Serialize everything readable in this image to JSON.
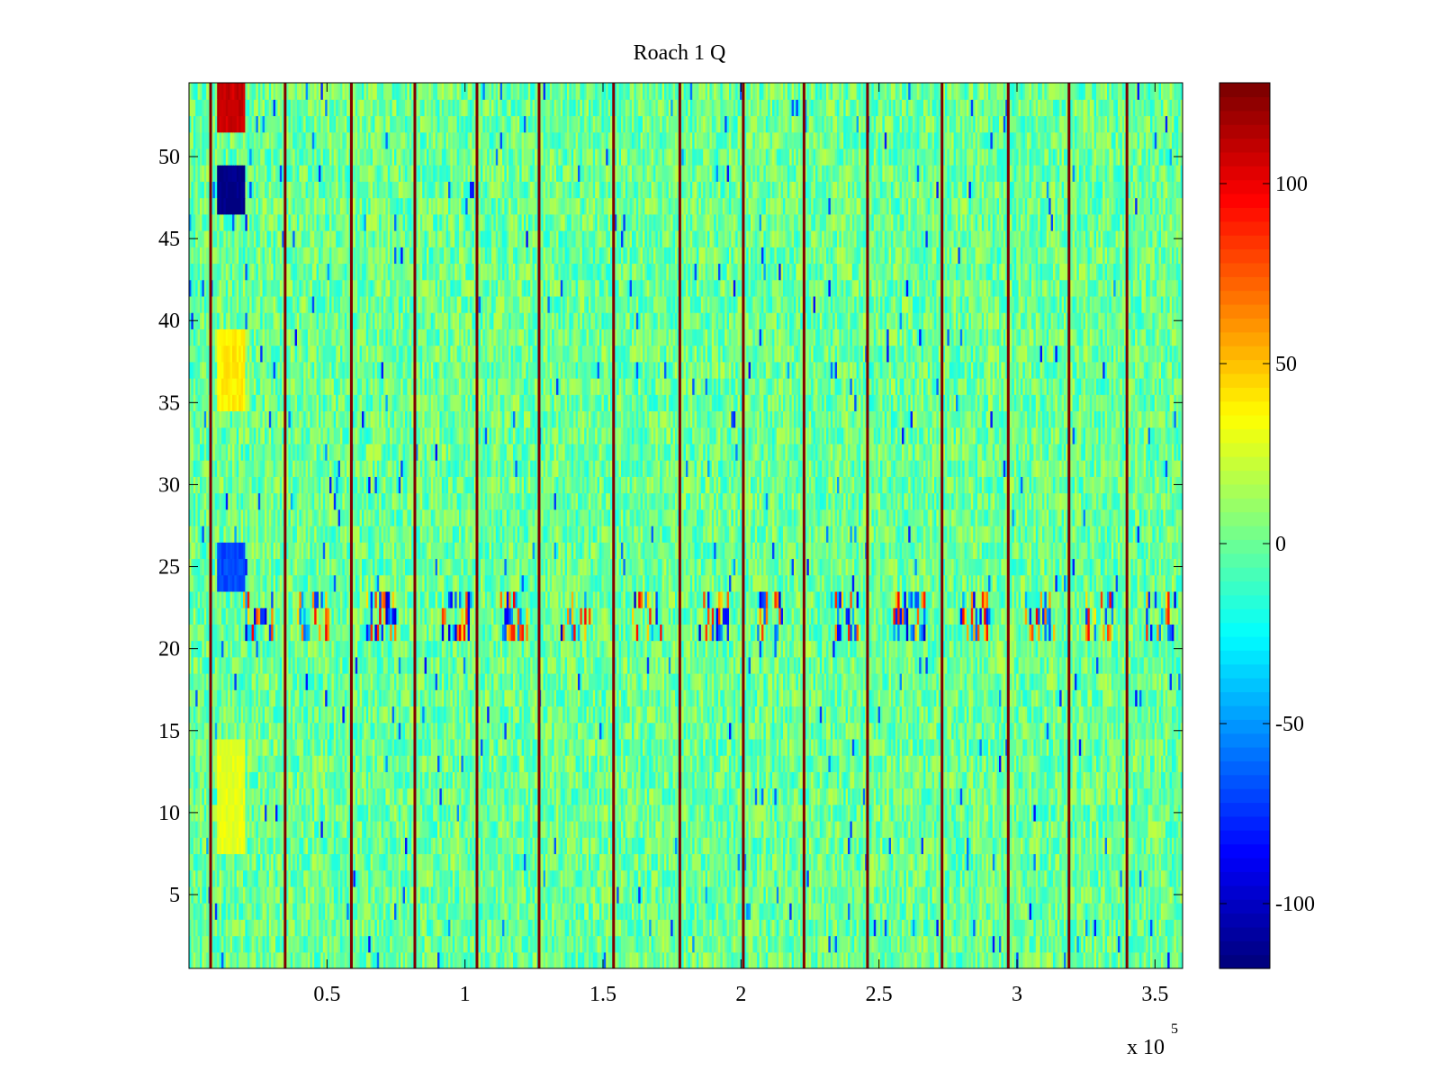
{
  "chart_data": {
    "type": "heatmap",
    "title": "Roach 1 Q",
    "xlabel": "",
    "ylabel": "",
    "x_multiplier_label": "x 10",
    "x_multiplier_exponent": "5",
    "xlim": [
      0,
      360000
    ],
    "ylim": [
      0.5,
      54.5
    ],
    "x_ticks": [
      50000,
      100000,
      150000,
      200000,
      250000,
      300000,
      350000
    ],
    "x_tick_labels": [
      "0.5",
      "1",
      "1.5",
      "2",
      "2.5",
      "3",
      "3.5"
    ],
    "y_ticks": [
      5,
      10,
      15,
      20,
      25,
      30,
      35,
      40,
      45,
      50
    ],
    "y_tick_labels": [
      "5",
      "10",
      "15",
      "20",
      "25",
      "30",
      "35",
      "40",
      "45",
      "50"
    ],
    "rows": 54,
    "value_baseline": 0,
    "colorbar": {
      "colormap": "jet",
      "clim": [
        -118,
        128
      ],
      "ticks": [
        -100,
        -50,
        0,
        50,
        100
      ],
      "tick_labels": [
        "-100",
        "-50",
        "0",
        "50",
        "100"
      ]
    },
    "vertical_stripes_x": [
      8000,
      35000,
      59000,
      82000,
      104500,
      127000,
      154000,
      178000,
      201000,
      223000,
      246000,
      273000,
      297000,
      319000,
      340000
    ],
    "stripe_value": 128,
    "noisy_band_rows": [
      21,
      22,
      23
    ],
    "noisy_band_burst_x": [
      25000,
      45000,
      70000,
      97000,
      118000,
      140000,
      166000,
      190000,
      210000,
      237000,
      261000,
      285000,
      308000,
      330000,
      352000
    ],
    "features": [
      {
        "x_range": [
          10000,
          20000
        ],
        "y_range": [
          52,
          54
        ],
        "value": 110
      },
      {
        "x_range": [
          10000,
          20000
        ],
        "y_range": [
          47,
          49
        ],
        "value": -118
      },
      {
        "x_range": [
          10000,
          20000
        ],
        "y_range": [
          24,
          26
        ],
        "value": -70
      },
      {
        "x_range": [
          10000,
          20000
        ],
        "y_range": [
          8,
          14
        ],
        "value": 30
      },
      {
        "x_range": [
          10000,
          20000
        ],
        "y_range": [
          35,
          39
        ],
        "value": 40
      }
    ]
  }
}
